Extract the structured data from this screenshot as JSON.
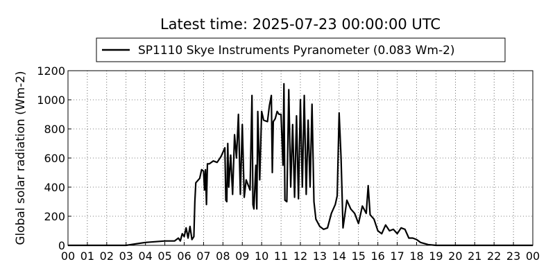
{
  "chart_data": {
    "type": "line",
    "title": "Latest time: 2025-07-23 00:00:00 UTC",
    "ylabel": "Global solar radiation (Wm-2)",
    "legend": "upper center",
    "grid": true,
    "xlim": [
      0,
      24
    ],
    "ylim": [
      0,
      1200
    ],
    "yticks": [
      0,
      200,
      400,
      600,
      800,
      1000,
      1200
    ],
    "xticks": [
      {
        "value": 0,
        "label": "00"
      },
      {
        "value": 1,
        "label": "01"
      },
      {
        "value": 2,
        "label": "02"
      },
      {
        "value": 3,
        "label": "03"
      },
      {
        "value": 4,
        "label": "04"
      },
      {
        "value": 5,
        "label": "05"
      },
      {
        "value": 6,
        "label": "06"
      },
      {
        "value": 7,
        "label": "07"
      },
      {
        "value": 8,
        "label": "08"
      },
      {
        "value": 9,
        "label": "09"
      },
      {
        "value": 10,
        "label": "10"
      },
      {
        "value": 11,
        "label": "11"
      },
      {
        "value": 12,
        "label": "12"
      },
      {
        "value": 13,
        "label": "13"
      },
      {
        "value": 14,
        "label": "14"
      },
      {
        "value": 15,
        "label": "15"
      },
      {
        "value": 16,
        "label": "16"
      },
      {
        "value": 17,
        "label": "17"
      },
      {
        "value": 18,
        "label": "18"
      },
      {
        "value": 19,
        "label": "19"
      },
      {
        "value": 20,
        "label": "20"
      },
      {
        "value": 21,
        "label": "21"
      },
      {
        "value": 22,
        "label": "22"
      },
      {
        "value": 23,
        "label": "23"
      },
      {
        "value": 24,
        "label": "00"
      }
    ],
    "x": [
      0,
      3,
      3.5,
      4,
      5,
      5.5,
      5.7,
      5.8,
      5.9,
      6,
      6.1,
      6.2,
      6.3,
      6.4,
      6.5,
      6.55,
      6.6,
      6.8,
      6.9,
      7.0,
      7.05,
      7.1,
      7.15,
      7.2,
      7.3,
      7.5,
      7.7,
      7.9,
      8.1,
      8.15,
      8.2,
      8.25,
      8.3,
      8.4,
      8.5,
      8.6,
      8.7,
      8.8,
      8.9,
      9.0,
      9.1,
      9.2,
      9.4,
      9.5,
      9.55,
      9.6,
      9.7,
      9.75,
      9.8,
      9.9,
      10.0,
      10.1,
      10.3,
      10.4,
      10.5,
      10.55,
      10.6,
      10.7,
      10.8,
      10.9,
      11.0,
      11.1,
      11.15,
      11.2,
      11.3,
      11.4,
      11.5,
      11.6,
      11.7,
      11.8,
      11.9,
      12.0,
      12.1,
      12.2,
      12.3,
      12.4,
      12.5,
      12.6,
      12.7,
      12.8,
      13.0,
      13.2,
      13.4,
      13.6,
      13.8,
      13.9,
      14.0,
      14.1,
      14.2,
      14.4,
      14.6,
      14.8,
      15.0,
      15.2,
      15.4,
      15.5,
      15.6,
      15.8,
      16.0,
      16.2,
      16.4,
      16.6,
      16.8,
      17.0,
      17.2,
      17.4,
      17.6,
      17.8,
      18.0,
      18.2,
      18.6,
      19,
      24
    ],
    "series": [
      {
        "name": "SP1110 Skye Instruments Pyranometer (0.083 Wm-2)",
        "color": "#000000",
        "values": [
          0,
          0,
          10,
          20,
          30,
          30,
          50,
          30,
          80,
          60,
          120,
          50,
          130,
          40,
          60,
          300,
          430,
          460,
          520,
          510,
          380,
          520,
          280,
          560,
          560,
          580,
          570,
          610,
          670,
          310,
          300,
          700,
          400,
          620,
          350,
          760,
          600,
          900,
          350,
          830,
          330,
          450,
          380,
          1030,
          280,
          250,
          550,
          250,
          920,
          450,
          920,
          860,
          850,
          960,
          1030,
          500,
          850,
          870,
          920,
          900,
          900,
          550,
          1110,
          310,
          300,
          1070,
          400,
          830,
          330,
          890,
          320,
          1000,
          400,
          1030,
          350,
          860,
          400,
          970,
          300,
          180,
          130,
          110,
          120,
          220,
          280,
          340,
          910,
          600,
          120,
          310,
          250,
          220,
          150,
          270,
          220,
          410,
          210,
          180,
          100,
          80,
          140,
          100,
          110,
          80,
          120,
          110,
          50,
          50,
          40,
          20,
          5,
          0,
          0
        ]
      }
    ]
  }
}
